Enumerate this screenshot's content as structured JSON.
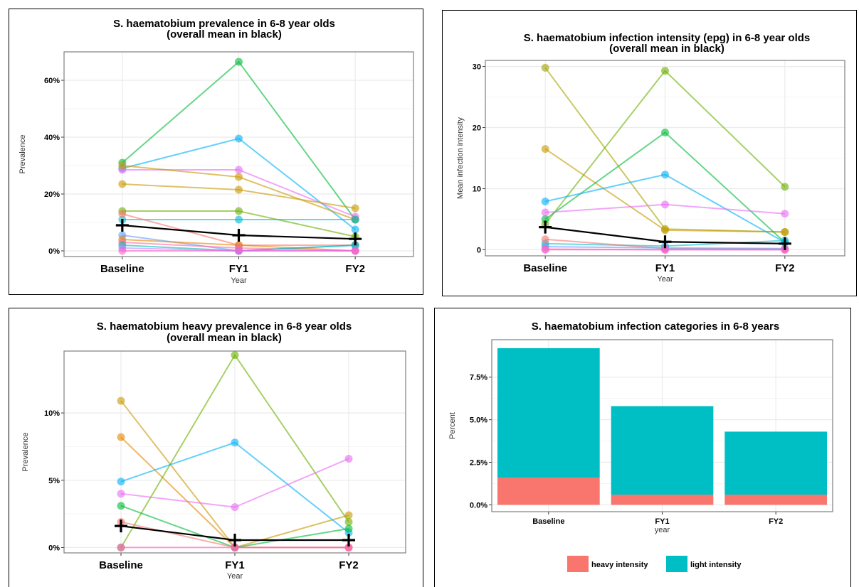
{
  "colors": {
    "series_palette": [
      "#f8766d",
      "#e58700",
      "#c99800",
      "#a3a500",
      "#6bb100",
      "#00ba38",
      "#00bf7d",
      "#00c0af",
      "#00bcd8",
      "#00b0f6",
      "#619cff",
      "#b983ff",
      "#e76bf3",
      "#fd61d1",
      "#ff67a4",
      "#db8e00"
    ],
    "mean": "#000000",
    "heavy": "#f8766d",
    "light": "#00bfc4",
    "grid_major": "#ebebeb",
    "grid_minor": "#f5f5f5",
    "panel_border": "#7f7f7f"
  },
  "chart_data": [
    {
      "type": "line",
      "title": "S. haematobium prevalence in 6-8 year olds",
      "subtitle": "(overall mean in black)",
      "xlabel": "Year",
      "ylabel": "Prevalence",
      "categories": [
        "Baseline",
        "FY1",
        "FY2"
      ],
      "ylim": [
        -0.02,
        0.7
      ],
      "yticks": [
        0,
        0.2,
        0.4,
        0.6
      ],
      "ytick_labels": [
        "0%",
        "20%",
        "40%",
        "60%"
      ],
      "grid": true,
      "series": [
        {
          "color": "#00ba38",
          "values": [
            0.31,
            0.665,
            0.11
          ]
        },
        {
          "color": "#00b0f6",
          "values": [
            0.29,
            0.395,
            0.075
          ]
        },
        {
          "color": "#e76bf3",
          "values": [
            0.285,
            0.285,
            0.12
          ]
        },
        {
          "color": "#c99800",
          "values": [
            0.3,
            0.26,
            0.11
          ]
        },
        {
          "color": "#c99800",
          "values": [
            0.235,
            0.215,
            0.15
          ]
        },
        {
          "color": "#6bb100",
          "values": [
            0.14,
            0.14,
            0.05
          ]
        },
        {
          "color": "#00bcd8",
          "values": [
            0.11,
            0.11,
            0.11
          ]
        },
        {
          "color": "#f8766d",
          "values": [
            0.13,
            0.02,
            0.02
          ]
        },
        {
          "color": "#619cff",
          "values": [
            0.055,
            0.0,
            0.02
          ]
        },
        {
          "color": "#e58700",
          "values": [
            0.04,
            0.02,
            0.0
          ]
        },
        {
          "color": "#ff67a4",
          "values": [
            0.03,
            0.01,
            0.0
          ]
        },
        {
          "color": "#00c0af",
          "values": [
            0.02,
            0.0,
            0.02
          ]
        },
        {
          "color": "#b983ff",
          "values": [
            0.01,
            0.0,
            0.0
          ]
        },
        {
          "color": "#fd61d1",
          "values": [
            0.0,
            0.0,
            0.0
          ]
        }
      ],
      "mean": [
        0.09,
        0.055,
        0.042
      ]
    },
    {
      "type": "line",
      "title": "S. haematobium infection intensity (epg) in 6-8 year olds",
      "subtitle": "(overall mean in black)",
      "xlabel": "Year",
      "ylabel": "Mean infection intensity",
      "categories": [
        "Baseline",
        "FY1",
        "FY2"
      ],
      "ylim": [
        -1,
        31
      ],
      "yticks": [
        0,
        10,
        20,
        30
      ],
      "ytick_labels": [
        "0",
        "10",
        "20",
        "30"
      ],
      "grid": true,
      "series": [
        {
          "color": "#a3a500",
          "values": [
            29.8,
            3.4,
            2.9
          ]
        },
        {
          "color": "#c99800",
          "values": [
            16.5,
            3.2,
            2.9
          ]
        },
        {
          "color": "#6bb100",
          "values": [
            4.2,
            29.3,
            10.3
          ]
        },
        {
          "color": "#00ba38",
          "values": [
            5.0,
            19.2,
            1.2
          ]
        },
        {
          "color": "#00b0f6",
          "values": [
            7.9,
            12.3,
            1.2
          ]
        },
        {
          "color": "#e76bf3",
          "values": [
            6.1,
            7.4,
            5.9
          ]
        },
        {
          "color": "#00bcd8",
          "values": [
            1.0,
            0.6,
            1.5
          ]
        },
        {
          "color": "#f8766d",
          "values": [
            1.7,
            0.2,
            0.1
          ]
        },
        {
          "color": "#619cff",
          "values": [
            0.5,
            0.3,
            0.2
          ]
        },
        {
          "color": "#ff67a4",
          "values": [
            0.1,
            0.0,
            0.0
          ]
        },
        {
          "color": "#fd61d1",
          "values": [
            0.0,
            0.0,
            0.0
          ]
        }
      ],
      "mean": [
        3.7,
        1.3,
        1.0
      ]
    },
    {
      "type": "line",
      "title": "S. haematobium heavy prevalence in 6-8 year olds",
      "subtitle": "(overall mean in black)",
      "xlabel": "Year",
      "ylabel": "Prevalence",
      "categories": [
        "Baseline",
        "FY1",
        "FY2"
      ],
      "ylim": [
        -0.004,
        0.146
      ],
      "yticks": [
        0,
        0.05,
        0.1
      ],
      "ytick_labels": [
        "0%",
        "5%",
        "10%"
      ],
      "grid": true,
      "series": [
        {
          "color": "#c99800",
          "values": [
            0.109,
            0.0,
            0.024
          ]
        },
        {
          "color": "#e58700",
          "values": [
            0.082,
            0.0,
            0.0
          ]
        },
        {
          "color": "#6bb100",
          "values": [
            0.0,
            0.143,
            0.019
          ]
        },
        {
          "color": "#00b0f6",
          "values": [
            0.049,
            0.078,
            0.011
          ]
        },
        {
          "color": "#e76bf3",
          "values": [
            0.04,
            0.03,
            0.066
          ]
        },
        {
          "color": "#00ba38",
          "values": [
            0.031,
            0.0,
            0.014
          ]
        },
        {
          "color": "#f8766d",
          "values": [
            0.019,
            0.0,
            0.0
          ]
        },
        {
          "color": "#fd61d1",
          "values": [
            0.0,
            0.0,
            0.0
          ]
        }
      ],
      "mean": [
        0.016,
        0.0055,
        0.0055
      ]
    },
    {
      "type": "bar",
      "title": "S. haematobium infection categories in 6-8 years",
      "xlabel": "year",
      "ylabel": "Percent",
      "categories": [
        "Baseline",
        "FY1",
        "FY2"
      ],
      "ylim": [
        -0.004,
        0.097
      ],
      "yticks": [
        0,
        0.025,
        0.05,
        0.075
      ],
      "ytick_labels": [
        "0.0%",
        "2.5%",
        "5.0%",
        "7.5%"
      ],
      "grid": true,
      "legend": "bottom",
      "series": [
        {
          "name": "heavy intensity",
          "color": "#f8766d",
          "values": [
            0.016,
            0.006,
            0.006
          ]
        },
        {
          "name": "light intensity",
          "color": "#00bfc4",
          "values": [
            0.076,
            0.052,
            0.037
          ]
        }
      ]
    }
  ]
}
